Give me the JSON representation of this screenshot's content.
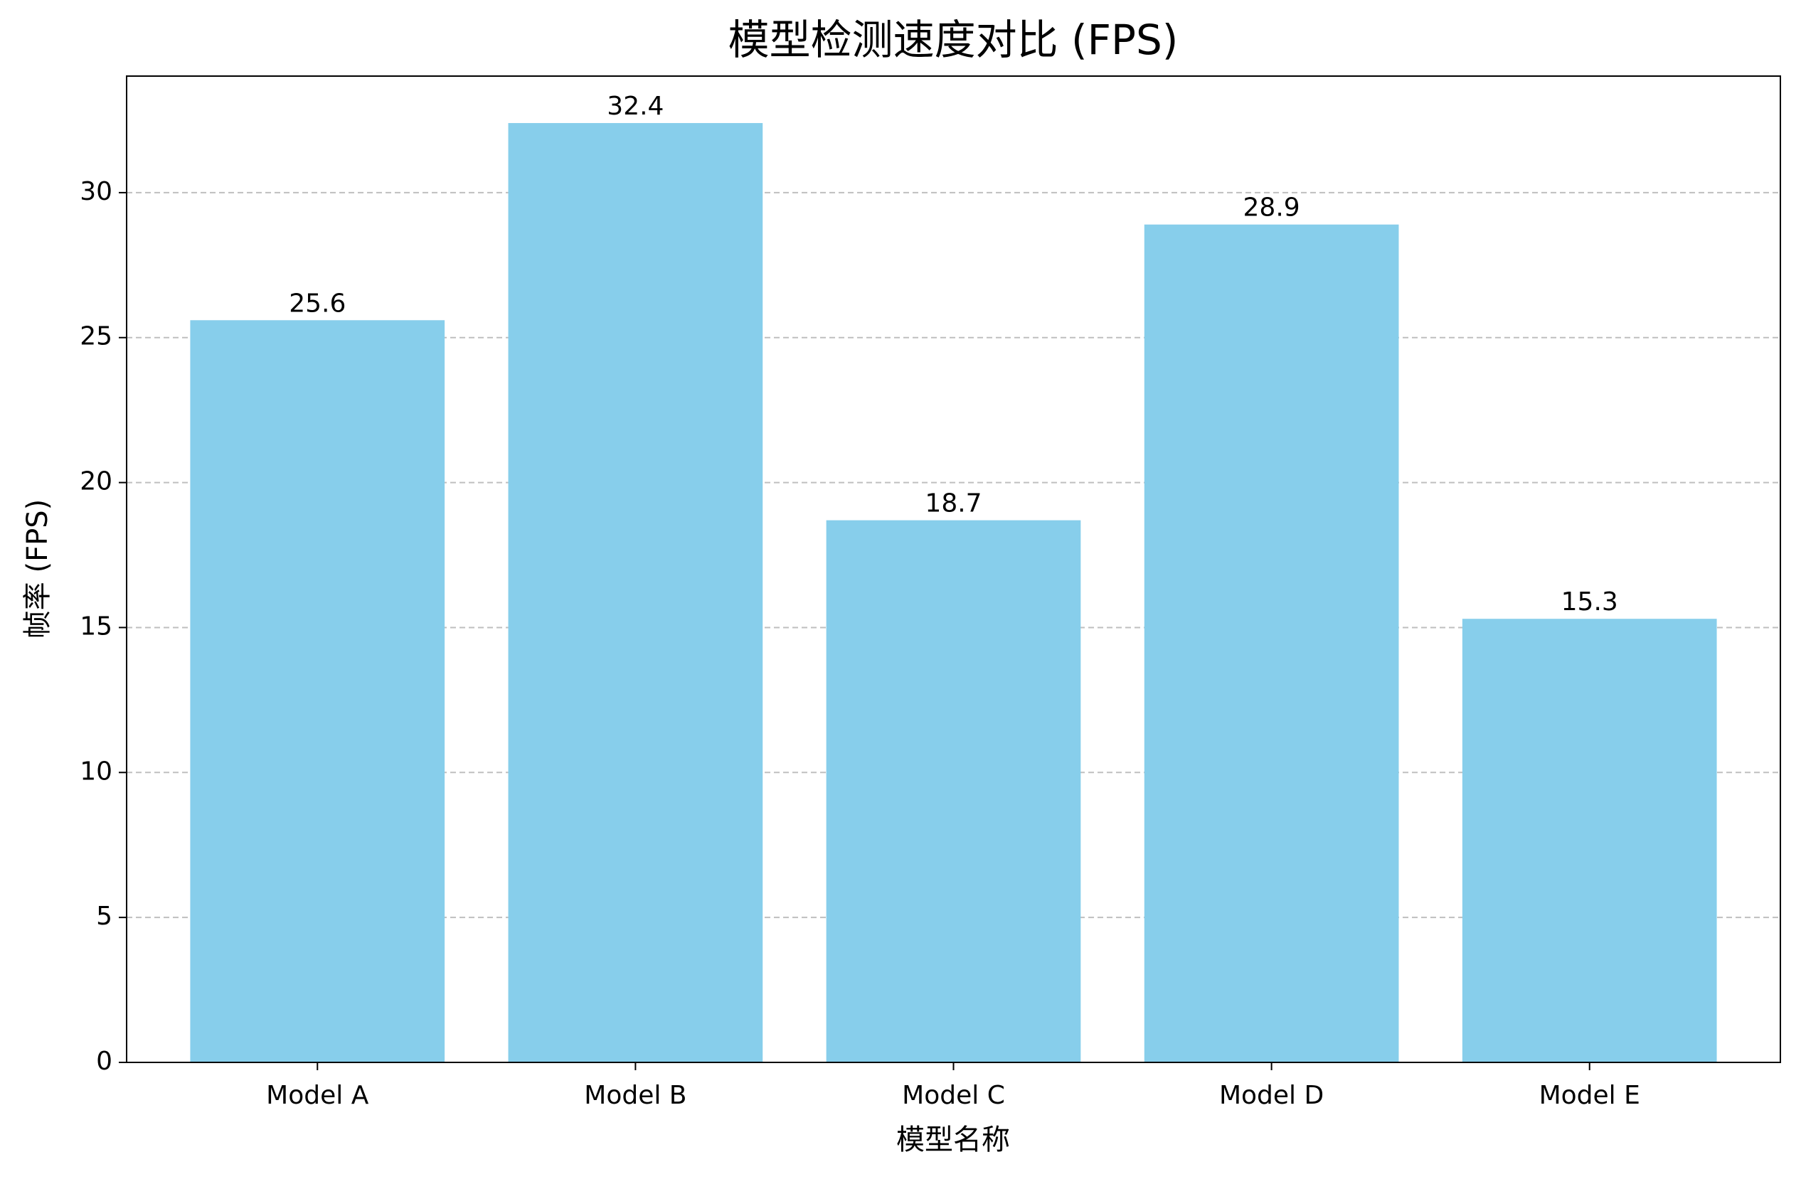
{
  "chart_data": {
    "type": "bar",
    "title": "模型检测速度对比 (FPS)",
    "x_label": "模型名称",
    "y_label": "帧率 (FPS)",
    "categories": [
      "Model A",
      "Model B",
      "Model C",
      "Model D",
      "Model E"
    ],
    "values": [
      25.6,
      32.4,
      18.7,
      28.9,
      15.3
    ],
    "color": "#87ceeb",
    "ylim": [
      0,
      34.02
    ],
    "yticks": [
      0,
      5,
      10,
      15,
      20,
      25,
      30
    ],
    "grid": true
  }
}
